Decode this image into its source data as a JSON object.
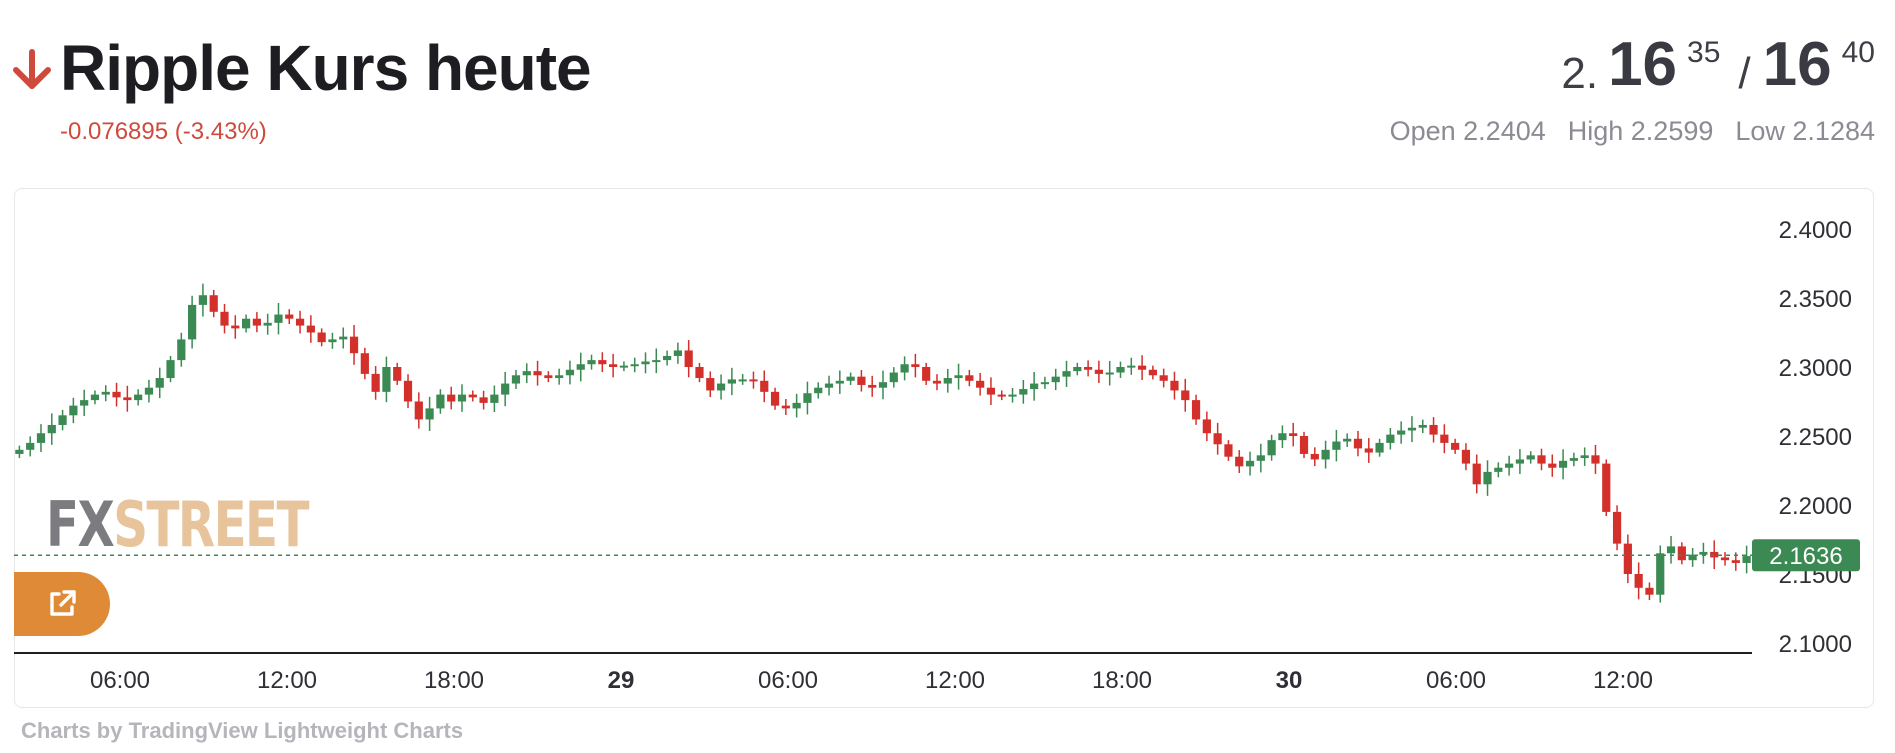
{
  "header": {
    "title": "Ripple Kurs heute",
    "change": "-0.076895 (-3.43%)",
    "trend_icon": "arrow-down-icon",
    "trend_color": "#cf4a3c"
  },
  "quote": {
    "bid_lead": "2.",
    "bid_big": "16",
    "bid_small": "35",
    "separator": "/",
    "ask_big": "16",
    "ask_small": "40",
    "open": "Open 2.2404",
    "high": "High 2.2599",
    "low": "Low 2.1284"
  },
  "watermark": {
    "part1": "FX",
    "part2": "STREET"
  },
  "popout": {
    "icon": "external-link-icon",
    "color": "#de8a36"
  },
  "credit": "Charts by TradingView Lightweight Charts",
  "chart_data": {
    "type": "candlestick",
    "ylim": [
      2.08,
      2.42
    ],
    "y_ticks": [
      "2.4000",
      "2.3500",
      "2.3000",
      "2.2500",
      "2.2000",
      "2.1500",
      "2.1000"
    ],
    "x_ticks": [
      {
        "label": "06:00",
        "bold": false
      },
      {
        "label": "12:00",
        "bold": false
      },
      {
        "label": "18:00",
        "bold": false
      },
      {
        "label": "29",
        "bold": true
      },
      {
        "label": "06:00",
        "bold": false
      },
      {
        "label": "12:00",
        "bold": false
      },
      {
        "label": "18:00",
        "bold": false
      },
      {
        "label": "30",
        "bold": true
      },
      {
        "label": "06:00",
        "bold": false
      },
      {
        "label": "12:00",
        "bold": false
      }
    ],
    "last_price": "2.1636",
    "last_price_value": 2.1636,
    "up_color": "#3b8a53",
    "down_color": "#d4302b",
    "close_path": [
      2.24,
      2.245,
      2.252,
      2.258,
      2.265,
      2.272,
      2.276,
      2.28,
      2.282,
      2.278,
      2.276,
      2.28,
      2.285,
      2.292,
      2.305,
      2.32,
      2.345,
      2.352,
      2.34,
      2.33,
      2.328,
      2.335,
      2.33,
      2.332,
      2.338,
      2.335,
      2.33,
      2.325,
      2.318,
      2.32,
      2.322,
      2.31,
      2.295,
      2.282,
      2.3,
      2.29,
      2.275,
      2.262,
      2.27,
      2.28,
      2.275,
      2.28,
      2.278,
      2.274,
      2.28,
      2.288,
      2.294,
      2.297,
      2.294,
      2.292,
      2.294,
      2.298,
      2.302,
      2.305,
      2.302,
      2.3,
      2.301,
      2.302,
      2.304,
      2.305,
      2.308,
      2.312,
      2.3,
      2.292,
      2.283,
      2.288,
      2.291,
      2.291,
      2.29,
      2.282,
      2.272,
      2.27,
      2.274,
      2.281,
      2.285,
      2.288,
      2.29,
      2.293,
      2.287,
      2.285,
      2.289,
      2.296,
      2.302,
      2.3,
      2.29,
      2.288,
      2.292,
      2.294,
      2.29,
      2.285,
      2.28,
      2.279,
      2.28,
      2.284,
      2.288,
      2.289,
      2.293,
      2.297,
      2.3,
      2.298,
      2.295,
      2.296,
      2.3,
      2.301,
      2.298,
      2.294,
      2.29,
      2.283,
      2.276,
      2.262,
      2.252,
      2.244,
      2.235,
      2.228,
      2.232,
      2.236,
      2.247,
      2.252,
      2.25,
      2.237,
      2.233,
      2.24,
      2.246,
      2.248,
      2.241,
      2.238,
      2.245,
      2.251,
      2.254,
      2.256,
      2.258,
      2.251,
      2.245,
      2.24,
      2.23,
      2.215,
      2.224,
      2.227,
      2.23,
      2.233,
      2.236,
      2.23,
      2.227,
      2.232,
      2.234,
      2.236,
      2.23,
      2.195,
      2.172,
      2.15,
      2.14,
      2.135,
      2.165,
      2.17,
      2.16,
      2.164,
      2.166,
      2.162,
      2.16,
      2.158,
      2.163
    ]
  }
}
